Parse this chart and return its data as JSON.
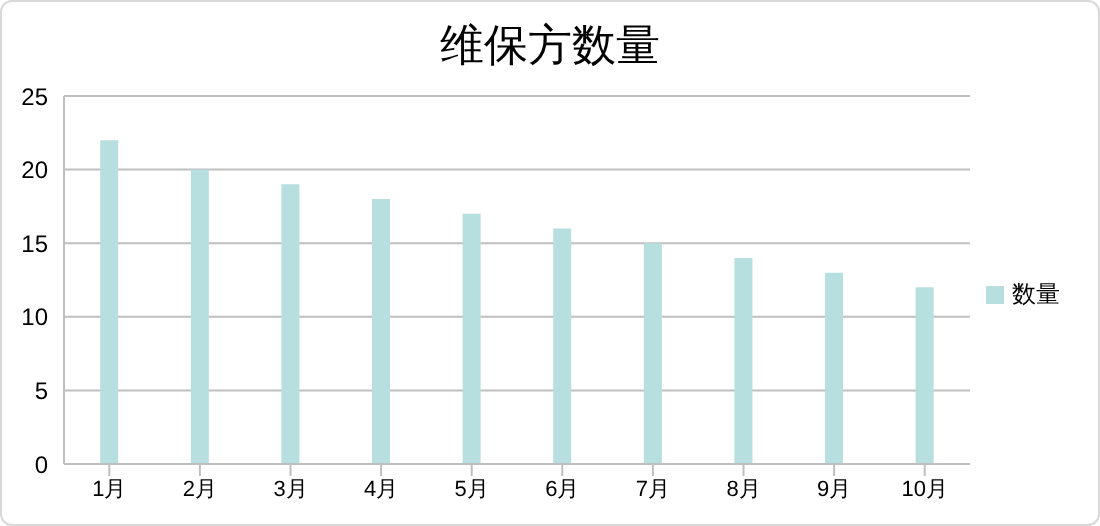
{
  "chart_data": {
    "type": "bar",
    "title": "维保方数量",
    "categories": [
      "1月",
      "2月",
      "3月",
      "4月",
      "5月",
      "6月",
      "7月",
      "8月",
      "9月",
      "10月"
    ],
    "series": [
      {
        "name": "数量",
        "color": "#b7dfe0",
        "values": [
          22,
          20,
          19,
          18,
          17,
          16,
          15,
          14,
          13,
          12
        ]
      }
    ],
    "ylim": [
      0,
      25
    ],
    "yticks": [
      0,
      5,
      10,
      15,
      20,
      25
    ],
    "grid": "y",
    "legend": "right"
  }
}
